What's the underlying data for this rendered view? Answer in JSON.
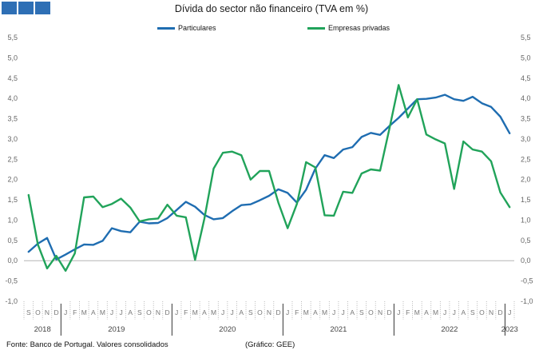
{
  "title": "Dívida do sector não financeiro (TVA em %)",
  "footer": {
    "source": "Fonte: Banco de Portugal. Valores consolidados",
    "credit": "(Gráfico: GEE)"
  },
  "colors": {
    "particulares": "#1f6db1",
    "empresas": "#21a35a",
    "logo": "#2e6fb5"
  },
  "chart_data": {
    "type": "line",
    "title": "Dívida do sector não financeiro (TVA em %)",
    "legend_position": "top",
    "grid": false,
    "ylim": [
      -1.0,
      5.5
    ],
    "yticks": [
      "-1,0",
      "-0,5",
      "0,0",
      "0,5",
      "1,0",
      "1,5",
      "2,0",
      "2,5",
      "3,0",
      "3,5",
      "4,0",
      "4,5",
      "5,0",
      "5,5"
    ],
    "x": [
      "S",
      "O",
      "N",
      "D",
      "J",
      "F",
      "M",
      "A",
      "M",
      "J",
      "J",
      "A",
      "S",
      "O",
      "N",
      "D",
      "J",
      "F",
      "M",
      "A",
      "M",
      "J",
      "J",
      "A",
      "S",
      "O",
      "N",
      "D",
      "J",
      "F",
      "M",
      "A",
      "M",
      "J",
      "J",
      "A",
      "S",
      "O",
      "N",
      "D",
      "J",
      "F",
      "M",
      "A",
      "M",
      "J",
      "J",
      "A",
      "S",
      "O",
      "N",
      "D",
      "J"
    ],
    "years": [
      {
        "label": "2018",
        "start": 0,
        "end": 3
      },
      {
        "label": "2019",
        "start": 4,
        "end": 15
      },
      {
        "label": "2020",
        "start": 16,
        "end": 27
      },
      {
        "label": "2021",
        "start": 28,
        "end": 39
      },
      {
        "label": "2022",
        "start": 40,
        "end": 51
      },
      {
        "label": "2023",
        "start": 52,
        "end": 52
      }
    ],
    "series": [
      {
        "name": "Particulares",
        "color": "#1f6db1",
        "values": [
          0.22,
          0.42,
          0.56,
          0.03,
          0.15,
          0.28,
          0.4,
          0.39,
          0.49,
          0.8,
          0.73,
          0.7,
          0.96,
          0.92,
          0.93,
          1.05,
          1.25,
          1.45,
          1.33,
          1.13,
          1.02,
          1.05,
          1.22,
          1.37,
          1.39,
          1.49,
          1.6,
          1.76,
          1.67,
          1.43,
          1.75,
          2.27,
          2.6,
          2.53,
          2.74,
          2.8,
          3.05,
          3.15,
          3.1,
          3.32,
          3.52,
          3.75,
          3.98,
          3.99,
          4.02,
          4.09,
          3.98,
          3.94,
          4.04,
          3.88,
          3.79,
          3.55,
          3.14
        ]
      },
      {
        "name": "Empresas privadas",
        "color": "#21a35a",
        "values": [
          1.62,
          0.4,
          -0.19,
          0.12,
          -0.25,
          0.18,
          1.56,
          1.58,
          1.32,
          1.4,
          1.53,
          1.31,
          0.97,
          1.02,
          1.04,
          1.38,
          1.11,
          1.07,
          0.02,
          1.03,
          2.27,
          2.66,
          2.69,
          2.6,
          2.0,
          2.21,
          2.21,
          1.43,
          0.8,
          1.4,
          2.43,
          2.3,
          1.12,
          1.11,
          1.7,
          1.67,
          2.15,
          2.25,
          2.22,
          3.25,
          4.33,
          3.53,
          3.98,
          3.11,
          2.99,
          2.89,
          1.77,
          2.94,
          2.74,
          2.69,
          2.45,
          1.68,
          1.32
        ]
      }
    ]
  }
}
